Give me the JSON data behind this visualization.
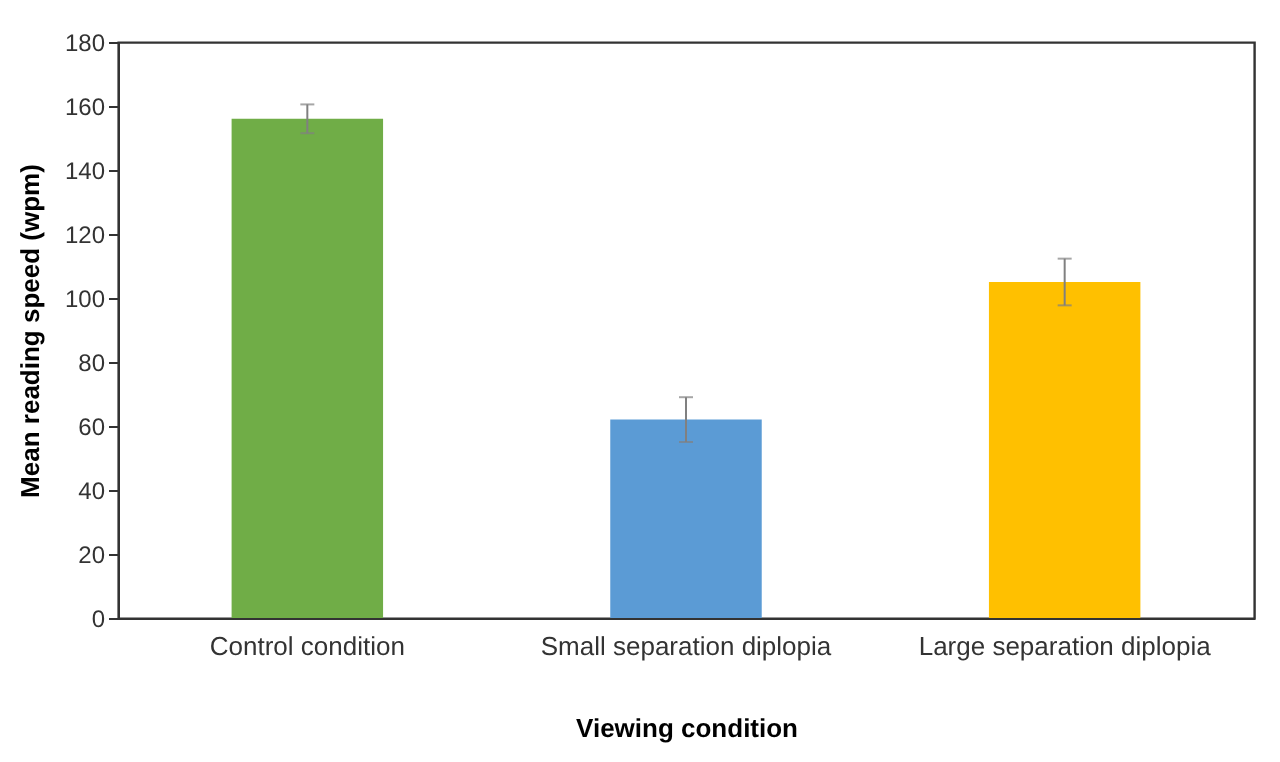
{
  "chart_data": {
    "type": "bar",
    "xlabel": "Viewing condition",
    "ylabel": "Mean reading speed (wpm)",
    "categories": [
      "Control condition",
      "Small separation diplopia",
      "Large separation diplopia"
    ],
    "values": [
      156,
      62,
      105
    ],
    "colors": [
      "#70ad47",
      "#5b9bd5",
      "#ffc000"
    ],
    "errors": [
      4.5,
      7,
      7.3
    ],
    "ylim": [
      0,
      180
    ],
    "yticks": [
      0,
      20,
      40,
      60,
      80,
      100,
      120,
      140,
      160,
      180
    ],
    "grid": false,
    "legend": false
  }
}
